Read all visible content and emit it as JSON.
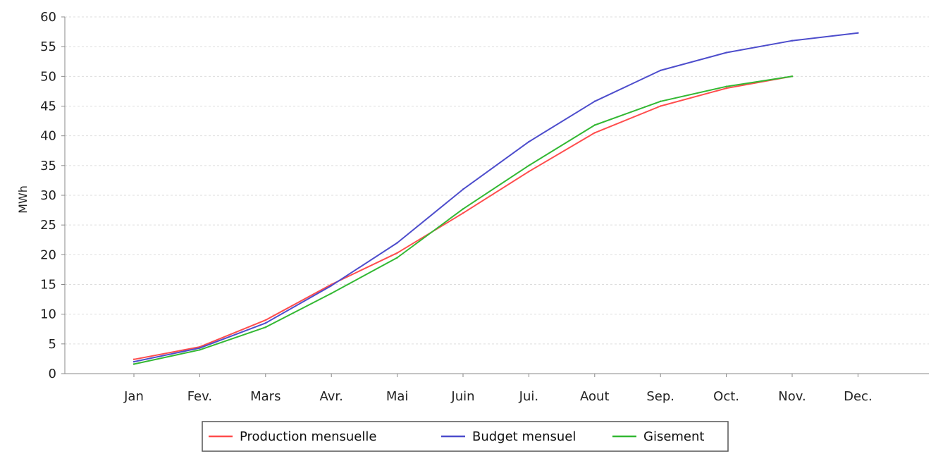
{
  "chart_data": {
    "type": "line",
    "title": "",
    "xlabel": "",
    "ylabel": "MWh",
    "ylim": [
      0,
      60
    ],
    "yticks": [
      "0",
      "5",
      "10",
      "15",
      "20",
      "25",
      "30",
      "35",
      "40",
      "45",
      "50",
      "55",
      "60"
    ],
    "categories": [
      "Jan",
      "Fev.",
      "Mars",
      "Avr.",
      "Mai",
      "Juin",
      "Jui.",
      "Aout",
      "Sep.",
      "Oct.",
      "Nov.",
      "Dec."
    ],
    "grid": true,
    "legend_position": "bottom",
    "series": [
      {
        "name": "Production mensuelle",
        "color": "#ff4d4d",
        "values": [
          2.4,
          4.5,
          9.0,
          15.0,
          20.3,
          27.0,
          34.0,
          40.5,
          45.0,
          48.0,
          50.0,
          null
        ]
      },
      {
        "name": "Budget mensuel",
        "color": "#4d4dcc",
        "values": [
          2.0,
          4.3,
          8.5,
          14.8,
          22.0,
          31.0,
          39.0,
          45.8,
          51.0,
          54.0,
          56.0,
          57.3
        ]
      },
      {
        "name": "Gisement",
        "color": "#33b833",
        "values": [
          1.6,
          4.0,
          7.8,
          13.5,
          19.5,
          27.7,
          35.0,
          41.8,
          45.8,
          48.3,
          50.0,
          null
        ]
      }
    ]
  }
}
